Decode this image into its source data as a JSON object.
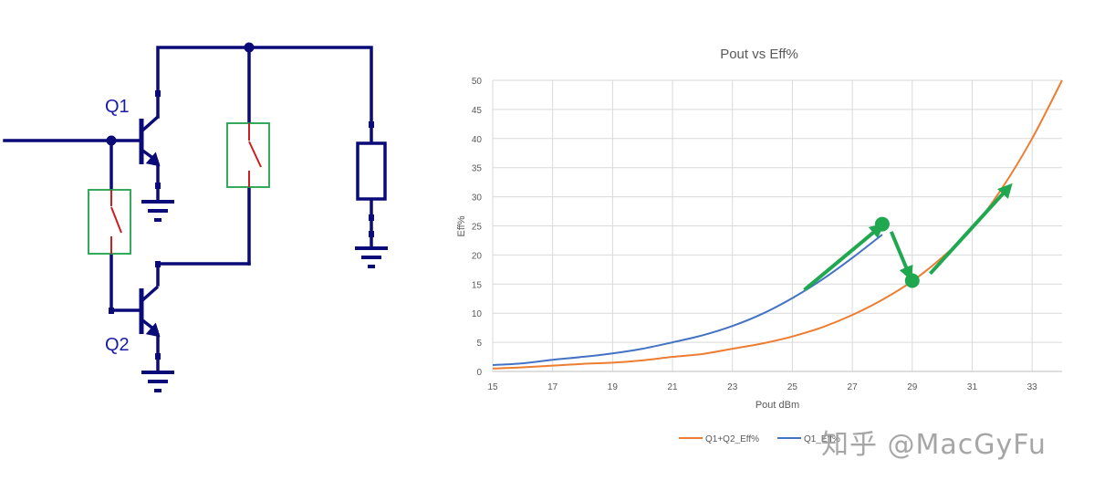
{
  "schematic": {
    "labels": {
      "q1": "Q1",
      "q2": "Q2"
    },
    "colors": {
      "wire": "#0a0a78",
      "switch_box": "#1fa04a",
      "switch_blade": "#cc1f1f",
      "label": "#1a1aa8"
    }
  },
  "chart_data": {
    "type": "line",
    "title": "Pout vs Eff%",
    "xlabel": "Pout dBm",
    "ylabel": "Eff%",
    "xlim": [
      15,
      34
    ],
    "ylim": [
      0,
      50
    ],
    "x_ticks": [
      "15",
      "17",
      "19",
      "21",
      "23",
      "25",
      "27",
      "29",
      "31",
      "33"
    ],
    "y_ticks": [
      "0",
      "5",
      "10",
      "15",
      "20",
      "25",
      "30",
      "35",
      "40",
      "45",
      "50"
    ],
    "grid": true,
    "legend_position": "bottom",
    "series": [
      {
        "name": "Q1+Q2_Eff%",
        "color": "#ed7d31",
        "x": [
          15,
          16,
          17,
          18,
          19,
          20,
          21,
          22,
          23,
          24,
          25,
          26,
          27,
          28,
          29,
          30,
          31,
          32,
          33,
          34
        ],
        "y": [
          0.5,
          0.7,
          1.0,
          1.3,
          1.5,
          1.9,
          2.5,
          3.0,
          3.9,
          4.8,
          6.0,
          7.6,
          9.7,
          12.3,
          15.5,
          19.6,
          24.5,
          31.5,
          40.0,
          50.0
        ]
      },
      {
        "name": "Q1_Eff%",
        "color": "#4472c4",
        "x": [
          15,
          16,
          17,
          18,
          19,
          20,
          21,
          22,
          23,
          24,
          25,
          26,
          27,
          28
        ],
        "y": [
          1.1,
          1.4,
          2.0,
          2.5,
          3.1,
          3.9,
          5.0,
          6.2,
          7.8,
          9.9,
          12.6,
          15.8,
          19.5,
          23.5
        ]
      }
    ],
    "annotations": [
      {
        "type": "point",
        "label": "Q1 peak",
        "x": 28.0,
        "y": 25.3,
        "color": "#1fa850"
      },
      {
        "type": "point",
        "label": "Q1+Q2 switch",
        "x": 29.0,
        "y": 15.6,
        "color": "#1fa850"
      },
      {
        "type": "arrow",
        "from": [
          25.4,
          14.0
        ],
        "to": [
          27.9,
          24.7
        ],
        "color": "#1fa850"
      },
      {
        "type": "arrow",
        "from": [
          28.3,
          24.0
        ],
        "to": [
          28.9,
          16.6
        ],
        "color": "#1fa850"
      },
      {
        "type": "arrow",
        "from": [
          29.6,
          16.8
        ],
        "to": [
          32.2,
          31.5
        ],
        "color": "#1fa850"
      }
    ]
  },
  "legend": {
    "items": [
      {
        "label": "Q1+Q2_Eff%",
        "color": "#ed7d31"
      },
      {
        "label": "Q1_Eff%",
        "color": "#4472c4"
      }
    ]
  },
  "watermark": {
    "text": "知乎 @MacGyFu"
  }
}
